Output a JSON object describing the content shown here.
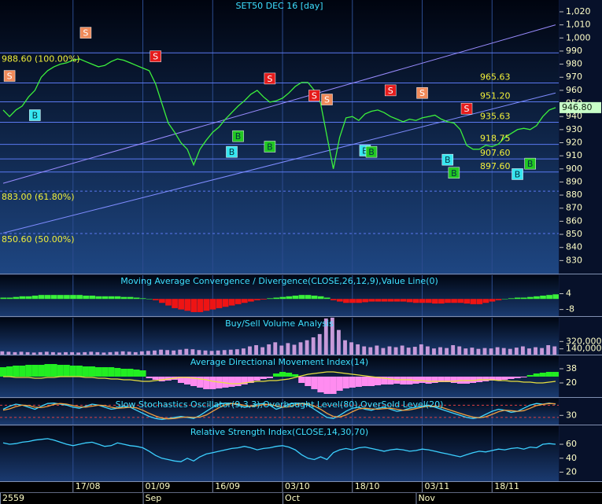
{
  "chart_data": [
    {
      "type": "line",
      "title": "SET50 DEC 16  [day]",
      "categories": [
        null,
        null,
        null,
        null,
        null,
        null,
        null,
        null,
        null,
        null,
        null,
        "17/08",
        null,
        null,
        null,
        null,
        null,
        null,
        null,
        null,
        null,
        null,
        "01/09",
        null,
        null,
        null,
        null,
        null,
        null,
        null,
        null,
        null,
        null,
        "16/09",
        null,
        null,
        null,
        null,
        null,
        null,
        null,
        null,
        null,
        null,
        "03/10",
        null,
        null,
        null,
        null,
        null,
        null,
        null,
        null,
        null,
        null,
        "18/10",
        null,
        null,
        null,
        null,
        null,
        null,
        null,
        null,
        null,
        null,
        "03/11",
        null,
        null,
        null,
        null,
        null,
        null,
        null,
        null,
        null,
        null,
        "18/11",
        null,
        null,
        null,
        null,
        null,
        null,
        null,
        null,
        null,
        null
      ],
      "period_labels": [
        "2559",
        null,
        null,
        null,
        null,
        null,
        null,
        null,
        null,
        null,
        null,
        null,
        null,
        null,
        null,
        null,
        null,
        null,
        null,
        null,
        null,
        null,
        "Sep",
        null,
        null,
        null,
        null,
        null,
        null,
        null,
        null,
        null,
        null,
        null,
        null,
        null,
        null,
        null,
        null,
        null,
        null,
        null,
        null,
        null,
        "Oct",
        null,
        null,
        null,
        null,
        null,
        null,
        null,
        null,
        null,
        null,
        null,
        null,
        null,
        null,
        null,
        null,
        null,
        null,
        null,
        null,
        "Nov",
        null,
        null,
        null,
        null,
        null,
        null,
        null,
        null,
        null,
        null,
        null,
        null,
        null,
        null,
        null,
        null,
        null,
        null,
        null,
        null,
        null,
        null
      ],
      "series": [
        {
          "color": "#3cf03c",
          "values": [
            945,
            940,
            945,
            948,
            955,
            960,
            970,
            975,
            978,
            980,
            981,
            983,
            984,
            982,
            980,
            978,
            979,
            982,
            984,
            983,
            981,
            979,
            977,
            975,
            965,
            950,
            935,
            928,
            920,
            915,
            903,
            915,
            922,
            928,
            932,
            938,
            943,
            948,
            952,
            957,
            960,
            955,
            951,
            952,
            954,
            958,
            963,
            966,
            966,
            960,
            950,
            925,
            900,
            924,
            939,
            940,
            937,
            942,
            944,
            945,
            943,
            940,
            938,
            936,
            938,
            937,
            939,
            940,
            941,
            938,
            936,
            935,
            930,
            918,
            915,
            915,
            918,
            917,
            919,
            924,
            927,
            930,
            931,
            930,
            933,
            940,
            945,
            946.8
          ]
        }
      ],
      "last_label": "946.80",
      "ylim": [
        820,
        1029
      ],
      "yticks": [
        830,
        840,
        850,
        860,
        870,
        880,
        890,
        900,
        910,
        920,
        930,
        940,
        950,
        960,
        970,
        980,
        990,
        {
          "value": 1000,
          "label": "1,000"
        },
        {
          "value": 1010,
          "label": "1,010"
        },
        {
          "value": 1020,
          "label": "1,020"
        }
      ],
      "levels_left": [
        {
          "value": 988.6,
          "label": "988.60 (100.00%)"
        },
        {
          "value": 883,
          "label": "883.00 (61.80%)",
          "dashed": true
        },
        {
          "value": 850.6,
          "label": "850.60 (50.00%)",
          "dashed": true
        }
      ],
      "levels_right": [
        965.63,
        {
          "value": 951.2,
          "label": "951.20"
        },
        935.63,
        918.75,
        {
          "value": 907.6,
          "label": "907.60"
        },
        {
          "value": 897.6,
          "label": "897.60"
        }
      ],
      "trend_lines": [
        {
          "color": "#7f8cff",
          "x": [
            0,
            87
          ],
          "values": [
            851,
            958
          ]
        },
        {
          "color": "#9a8cff",
          "x": [
            0,
            87
          ],
          "values": [
            889,
            1010
          ]
        }
      ],
      "signals": [
        {
          "index": 1,
          "value": 971,
          "label": "S",
          "color": "#f08a5a"
        },
        {
          "index": 13,
          "value": 1004,
          "label": "S",
          "color": "#f08a5a"
        },
        {
          "index": 24,
          "value": 986,
          "label": "S",
          "color": "#e51c1c"
        },
        {
          "index": 42,
          "value": 969,
          "label": "S",
          "color": "#e51c1c"
        },
        {
          "index": 49,
          "value": 956,
          "label": "S",
          "color": "#e51c1c"
        },
        {
          "index": 51,
          "value": 953,
          "label": "S",
          "color": "#f08a5a"
        },
        {
          "index": 61,
          "value": 960,
          "label": "S",
          "color": "#e51c1c"
        },
        {
          "index": 66,
          "value": 958,
          "label": "S",
          "color": "#f08a5a"
        },
        {
          "index": 73,
          "value": 946,
          "label": "S",
          "color": "#e51c1c"
        },
        {
          "index": 5,
          "value": 941,
          "label": "B",
          "color": "#36e6f0"
        },
        {
          "index": 36,
          "value": 913,
          "label": "B",
          "color": "#36e6f0"
        },
        {
          "index": 37,
          "value": 925,
          "label": "B",
          "color": "#22c822"
        },
        {
          "index": 42,
          "value": 917,
          "label": "B",
          "color": "#22c822"
        },
        {
          "index": 57,
          "value": 914,
          "label": "B",
          "color": "#36e6f0"
        },
        {
          "index": 58,
          "value": 913,
          "label": "B",
          "color": "#22c822"
        },
        {
          "index": 70,
          "value": 907,
          "label": "B",
          "color": "#36e6f0"
        },
        {
          "index": 71,
          "value": 897,
          "label": "B",
          "color": "#22c822"
        },
        {
          "index": 81,
          "value": 896,
          "label": "B",
          "color": "#36e6f0"
        },
        {
          "index": 83,
          "value": 904,
          "label": "B",
          "color": "#22c822"
        }
      ]
    },
    {
      "type": "bar",
      "title": "Moving Average Convergence / Divergence(CLOSE,26,12,9),Value Line(0)",
      "values": [
        1,
        1,
        1.5,
        2,
        2,
        2.5,
        3,
        3,
        3,
        3,
        3,
        3,
        3,
        2.5,
        2.5,
        2,
        2,
        2,
        2,
        1.5,
        1.5,
        1,
        0.5,
        0,
        -1,
        -3,
        -5,
        -7,
        -8,
        -9,
        -10,
        -10,
        -9,
        -8,
        -7,
        -6,
        -5,
        -4,
        -3,
        -2,
        -1,
        -0.5,
        0.5,
        1,
        1.5,
        2,
        2.5,
        3,
        3,
        2.5,
        2,
        1,
        -1,
        -2,
        -3,
        -3,
        -3,
        -2.5,
        -2,
        -2,
        -2,
        -2,
        -2,
        -2,
        -2.5,
        -3,
        -3,
        -3,
        -3.5,
        -3.5,
        -3,
        -3,
        -3,
        -3.5,
        -4,
        -4,
        -3,
        -2,
        -1,
        0,
        0.5,
        1,
        1,
        1.5,
        2,
        2.5,
        3,
        3.5
      ],
      "color_up": "#3af03a",
      "color_down": "#ee1414",
      "ylim": [
        -13,
        18
      ],
      "yticks": [
        4,
        -8
      ]
    },
    {
      "type": "bar",
      "title": "Buy/Sell Volume Analysis",
      "values": [
        80000,
        70000,
        60000,
        70000,
        60000,
        50000,
        60000,
        70000,
        60000,
        50000,
        60000,
        60000,
        50000,
        60000,
        70000,
        60000,
        50000,
        60000,
        70000,
        80000,
        70000,
        60000,
        80000,
        90000,
        100000,
        120000,
        110000,
        100000,
        120000,
        140000,
        130000,
        110000,
        100000,
        90000,
        100000,
        110000,
        120000,
        130000,
        150000,
        200000,
        230000,
        180000,
        250000,
        300000,
        220000,
        280000,
        240000,
        300000,
        350000,
        420000,
        500000,
        880000,
        900000,
        600000,
        350000,
        300000,
        250000,
        200000,
        180000,
        220000,
        160000,
        200000,
        180000,
        220000,
        170000,
        190000,
        250000,
        200000,
        150000,
        180000,
        160000,
        230000,
        200000,
        150000,
        170000,
        140000,
        160000,
        150000,
        180000,
        160000,
        140000,
        170000,
        200000,
        150000,
        180000,
        160000,
        230000,
        200000
      ],
      "color": "#c79ad9",
      "ylim": [
        0,
        900000
      ],
      "yticks": [
        {
          "value": 320000,
          "label": "320,000"
        },
        {
          "value": 140000,
          "label": "140,000"
        }
      ]
    },
    {
      "type": "adx",
      "title": "Average Directional Movement Index(14)",
      "series": [
        {
          "color": "#e8e040",
          "values": [
            28,
            28,
            27,
            27,
            27,
            26,
            26,
            27,
            27,
            28,
            28,
            28,
            28,
            27,
            27,
            26,
            26,
            25,
            25,
            24,
            24,
            23,
            22,
            22,
            23,
            24,
            25,
            26,
            27,
            27,
            26,
            25,
            24,
            22,
            21,
            20,
            19,
            19,
            20,
            21,
            22,
            22,
            23,
            23,
            24,
            25,
            27,
            29,
            31,
            32,
            33,
            34,
            34,
            33,
            32,
            31,
            30,
            29,
            28,
            27,
            26,
            25,
            24,
            24,
            24,
            23,
            23,
            22,
            22,
            22,
            22,
            22,
            23,
            23,
            23,
            24,
            24,
            24,
            23,
            23,
            22,
            22,
            21,
            21,
            20,
            20,
            21,
            22
          ]
        }
      ],
      "spread": [
        12,
        13,
        14,
        14,
        15,
        15,
        15,
        16,
        16,
        15,
        15,
        14,
        14,
        13,
        13,
        12,
        12,
        12,
        11,
        10,
        10,
        9,
        8,
        -2,
        -4,
        -6,
        -5,
        -4,
        -8,
        -10,
        -12,
        -14,
        -16,
        -16,
        -15,
        -14,
        -13,
        -12,
        -10,
        -8,
        -5,
        -3,
        -2,
        4,
        6,
        5,
        3,
        -8,
        -12,
        -16,
        -20,
        -22,
        -22,
        -18,
        -15,
        -14,
        -13,
        -12,
        -12,
        -11,
        -10,
        -10,
        -9,
        -10,
        -10,
        -9,
        -8,
        -9,
        -8,
        -7,
        -7,
        -8,
        -9,
        -9,
        -8,
        -7,
        -6,
        -5,
        -5,
        -4,
        -3,
        -2,
        -1,
        2,
        4,
        5,
        6,
        6
      ],
      "spread_colors": [
        "#22ee22",
        "#ff8cf0"
      ],
      "ylim": [
        2,
        54
      ],
      "yticks": [
        38,
        20
      ]
    },
    {
      "type": "line",
      "title": "Slow Stochastics Oscillator(9,3,3),Overbought Level(80),OverSold Level(20)",
      "series": [
        {
          "color": "#40d8ff",
          "values": [
            60,
            75,
            85,
            80,
            70,
            60,
            75,
            88,
            90,
            85,
            80,
            70,
            65,
            75,
            85,
            80,
            70,
            60,
            65,
            75,
            70,
            55,
            40,
            25,
            15,
            10,
            15,
            20,
            25,
            20,
            15,
            30,
            50,
            70,
            85,
            90,
            88,
            80,
            70,
            75,
            85,
            88,
            80,
            60,
            70,
            85,
            90,
            88,
            80,
            60,
            40,
            20,
            15,
            30,
            50,
            65,
            70,
            60,
            55,
            65,
            70,
            60,
            50,
            55,
            65,
            70,
            75,
            80,
            70,
            60,
            50,
            40,
            30,
            20,
            15,
            20,
            35,
            50,
            60,
            55,
            45,
            50,
            65,
            80,
            88,
            85,
            90,
            85
          ]
        },
        {
          "color": "#f0a040",
          "values": [
            55,
            62,
            73,
            80,
            78,
            70,
            68,
            74,
            84,
            88,
            85,
            78,
            72,
            70,
            75,
            80,
            78,
            70,
            65,
            67,
            70,
            67,
            55,
            40,
            27,
            17,
            13,
            15,
            20,
            22,
            20,
            22,
            32,
            50,
            68,
            82,
            88,
            86,
            79,
            75,
            77,
            83,
            84,
            76,
            70,
            72,
            82,
            88,
            86,
            76,
            60,
            40,
            25,
            22,
            32,
            48,
            62,
            65,
            62,
            60,
            63,
            65,
            60,
            55,
            57,
            63,
            70,
            75,
            75,
            70,
            60,
            50,
            40,
            30,
            22,
            18,
            23,
            35,
            48,
            55,
            53,
            50,
            53,
            65,
            78,
            84,
            88,
            87
          ]
        }
      ],
      "guide_lines": [
        80,
        20
      ],
      "guide_color": "#e04040",
      "ylim": [
        -15,
        112
      ],
      "yticks": [
        30
      ]
    },
    {
      "type": "line",
      "title": "Relative Strength Index(CLOSE,14,30,70)",
      "series": [
        {
          "color": "#3cd0ff",
          "values": [
            62,
            60,
            61,
            63,
            64,
            66,
            67,
            68,
            66,
            63,
            60,
            58,
            60,
            62,
            63,
            60,
            57,
            58,
            62,
            60,
            58,
            57,
            55,
            50,
            44,
            40,
            38,
            36,
            35,
            40,
            36,
            42,
            46,
            48,
            50,
            52,
            54,
            55,
            57,
            55,
            52,
            54,
            55,
            57,
            58,
            56,
            52,
            45,
            40,
            38,
            42,
            38,
            48,
            52,
            54,
            52,
            55,
            56,
            54,
            52,
            50,
            52,
            53,
            52,
            50,
            51,
            53,
            52,
            50,
            48,
            46,
            44,
            42,
            45,
            48,
            50,
            49,
            51,
            53,
            52,
            54,
            55,
            53,
            56,
            55,
            60,
            61,
            60
          ]
        }
      ],
      "ylim": [
        7,
        86
      ],
      "yticks": [
        60,
        40,
        20
      ]
    }
  ]
}
